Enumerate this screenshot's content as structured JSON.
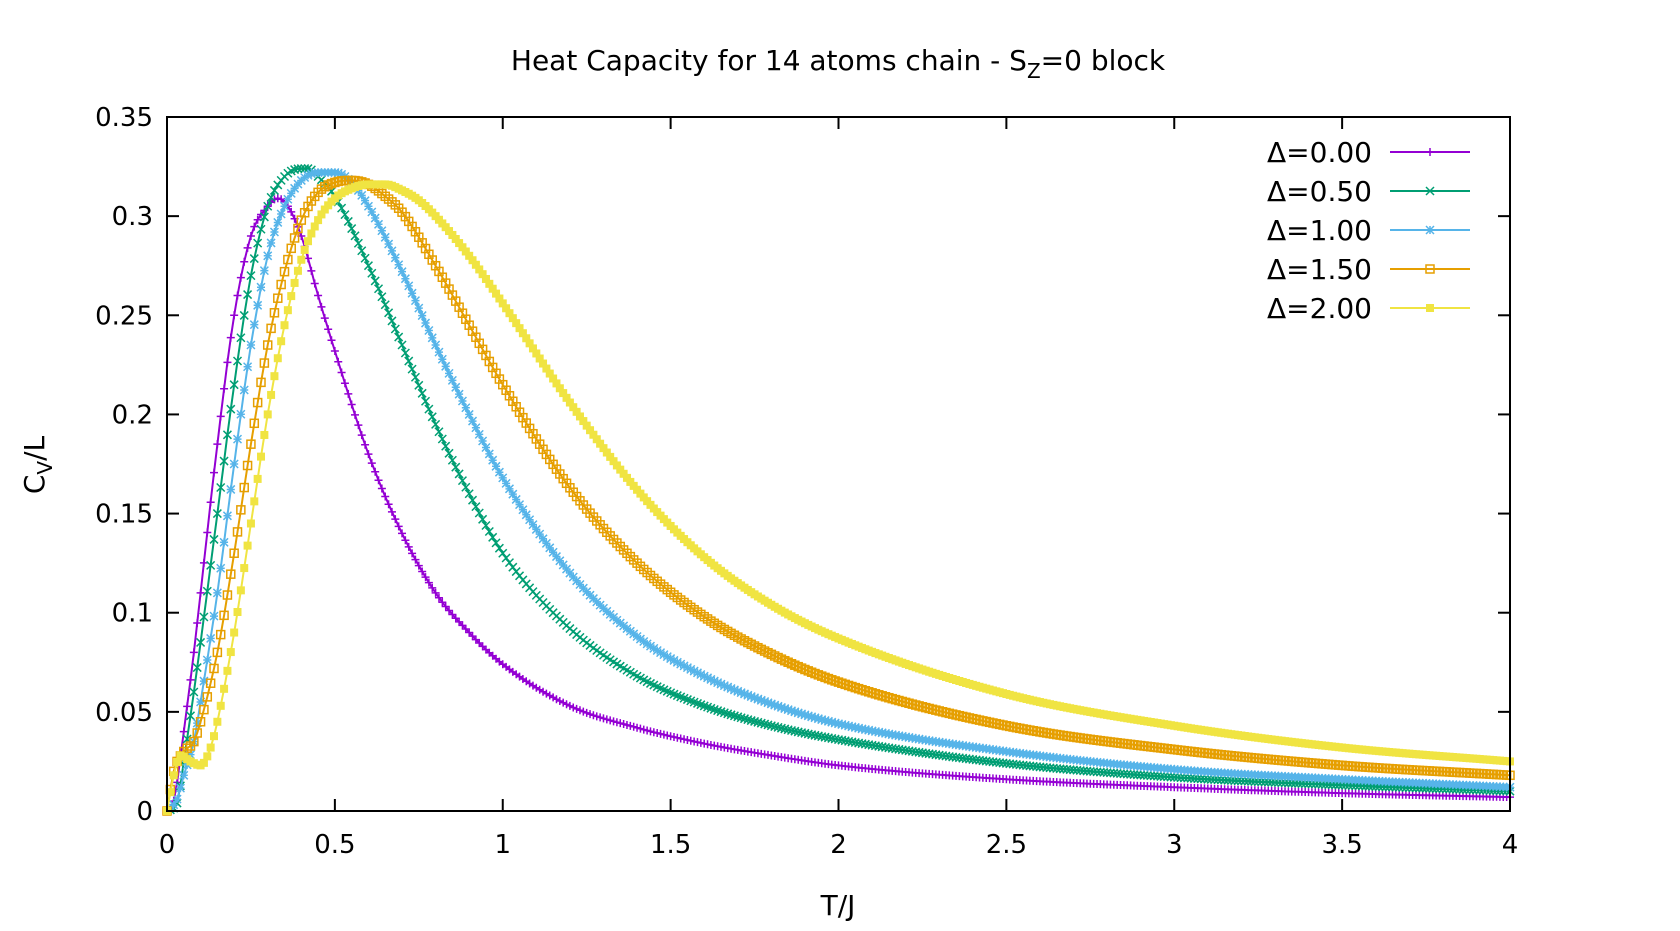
{
  "chart_data": {
    "type": "line",
    "title": {
      "main": "Heat Capacity for 14 atoms chain - S",
      "subscript": "Z",
      "suffix": "=0 block"
    },
    "xlabel": "T/J",
    "ylabel": {
      "main": "C",
      "subscript": "V",
      "suffix": "/L"
    },
    "xlim": [
      0,
      4
    ],
    "ylim": [
      0,
      0.35
    ],
    "xticks": [
      "0",
      "0.5",
      "1",
      "1.5",
      "2",
      "2.5",
      "3",
      "3.5",
      "4"
    ],
    "yticks": [
      "0",
      "0.05",
      "0.1",
      "0.15",
      "0.2",
      "0.25",
      "0.3",
      "0.35"
    ],
    "grid": false,
    "legend_position": "top-right",
    "series": [
      {
        "name": "Δ=0.00",
        "color": "#9400d3",
        "marker": "plus",
        "x": [
          0,
          0.02,
          0.05,
          0.08,
          0.1,
          0.15,
          0.2,
          0.25,
          0.3,
          0.33,
          0.36,
          0.4,
          0.45,
          0.5,
          0.6,
          0.7,
          0.8,
          0.9,
          1.0,
          1.2,
          1.4,
          1.6,
          1.8,
          2.0,
          2.5,
          3.0,
          3.5,
          4.0
        ],
        "y": [
          0,
          0.005,
          0.04,
          0.08,
          0.11,
          0.185,
          0.25,
          0.29,
          0.305,
          0.309,
          0.305,
          0.29,
          0.26,
          0.232,
          0.18,
          0.14,
          0.11,
          0.09,
          0.074,
          0.053,
          0.042,
          0.034,
          0.028,
          0.023,
          0.016,
          0.012,
          0.009,
          0.007
        ]
      },
      {
        "name": "Δ=0.50",
        "color": "#009e73",
        "marker": "cross",
        "x": [
          0,
          0.03,
          0.05,
          0.08,
          0.1,
          0.15,
          0.2,
          0.25,
          0.3,
          0.35,
          0.4,
          0.42,
          0.45,
          0.5,
          0.6,
          0.7,
          0.8,
          0.9,
          1.0,
          1.2,
          1.4,
          1.6,
          1.8,
          2.0,
          2.5,
          3.0,
          3.5,
          4.0
        ],
        "y": [
          0,
          0.004,
          0.025,
          0.06,
          0.085,
          0.15,
          0.215,
          0.27,
          0.305,
          0.32,
          0.324,
          0.324,
          0.32,
          0.31,
          0.275,
          0.235,
          0.195,
          0.16,
          0.13,
          0.092,
          0.068,
          0.053,
          0.043,
          0.036,
          0.024,
          0.017,
          0.013,
          0.01
        ]
      },
      {
        "name": "Δ=1.00",
        "color": "#56b4e9",
        "marker": "star",
        "x": [
          0,
          0.03,
          0.05,
          0.08,
          0.1,
          0.15,
          0.2,
          0.25,
          0.3,
          0.35,
          0.4,
          0.45,
          0.5,
          0.55,
          0.6,
          0.7,
          0.8,
          0.9,
          1.0,
          1.2,
          1.4,
          1.6,
          1.8,
          2.0,
          2.5,
          3.0,
          3.5,
          4.0
        ],
        "y": [
          0,
          0.006,
          0.018,
          0.035,
          0.055,
          0.11,
          0.175,
          0.235,
          0.28,
          0.305,
          0.318,
          0.322,
          0.322,
          0.317,
          0.305,
          0.272,
          0.235,
          0.2,
          0.168,
          0.12,
          0.088,
          0.068,
          0.054,
          0.044,
          0.03,
          0.021,
          0.016,
          0.012
        ]
      },
      {
        "name": "Δ=1.50",
        "color": "#e69f00",
        "marker": "square-open",
        "x": [
          0,
          0.02,
          0.05,
          0.08,
          0.1,
          0.15,
          0.2,
          0.25,
          0.3,
          0.35,
          0.4,
          0.45,
          0.5,
          0.55,
          0.6,
          0.65,
          0.7,
          0.8,
          0.9,
          1.0,
          1.2,
          1.4,
          1.6,
          1.8,
          2.0,
          2.5,
          3.0,
          3.5,
          4.0
        ],
        "y": [
          0,
          0.02,
          0.03,
          0.035,
          0.045,
          0.08,
          0.13,
          0.185,
          0.235,
          0.272,
          0.298,
          0.312,
          0.317,
          0.318,
          0.316,
          0.31,
          0.302,
          0.275,
          0.245,
          0.215,
          0.163,
          0.125,
          0.098,
          0.079,
          0.065,
          0.043,
          0.031,
          0.023,
          0.018
        ]
      },
      {
        "name": "Δ=2.00",
        "color": "#f0e442",
        "marker": "square-filled",
        "x": [
          0,
          0.02,
          0.04,
          0.07,
          0.1,
          0.13,
          0.15,
          0.2,
          0.25,
          0.3,
          0.35,
          0.4,
          0.45,
          0.5,
          0.55,
          0.6,
          0.65,
          0.7,
          0.75,
          0.8,
          0.9,
          1.0,
          1.2,
          1.4,
          1.6,
          1.8,
          2.0,
          2.5,
          3.0,
          3.5,
          4.0
        ],
        "y": [
          0,
          0.018,
          0.028,
          0.025,
          0.023,
          0.032,
          0.045,
          0.09,
          0.145,
          0.2,
          0.245,
          0.278,
          0.298,
          0.309,
          0.314,
          0.316,
          0.316,
          0.313,
          0.308,
          0.3,
          0.28,
          0.256,
          0.206,
          0.162,
          0.128,
          0.104,
          0.087,
          0.059,
          0.043,
          0.032,
          0.025
        ]
      }
    ]
  }
}
